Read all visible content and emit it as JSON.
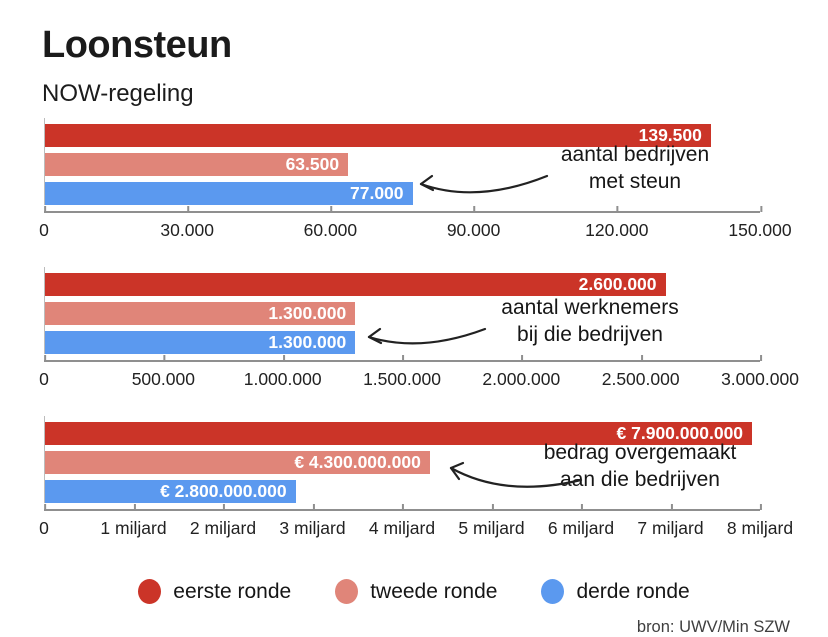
{
  "header": {
    "title": "Loonsteun",
    "subtitle": "NOW-regeling"
  },
  "colors": {
    "eerste_ronde": "#cb3428",
    "tweede_ronde": "#e08579",
    "derde_ronde": "#5b99ef",
    "text": "#1c1c1c",
    "axis": "#8f8f8f"
  },
  "chart_data": [
    {
      "type": "bar",
      "orientation": "horizontal",
      "annotation": [
        "aantal bedrijven",
        "met steun"
      ],
      "xlim": [
        0,
        150000
      ],
      "tick_labels": [
        "0",
        "30.000",
        "60.000",
        "90.000",
        "120.000",
        "150.000"
      ],
      "series": [
        {
          "name": "eerste ronde",
          "value": 139500,
          "label": "139.500",
          "color": "#cb3428"
        },
        {
          "name": "tweede ronde",
          "value": 63500,
          "label": "63.500",
          "color": "#e08579"
        },
        {
          "name": "derde ronde",
          "value": 77000,
          "label": "77.000",
          "color": "#5b99ef"
        }
      ]
    },
    {
      "type": "bar",
      "orientation": "horizontal",
      "annotation": [
        "aantal werknemers",
        "bij die bedrijven"
      ],
      "xlim": [
        0,
        3000000
      ],
      "tick_labels": [
        "0",
        "500.000",
        "1.000.000",
        "1.500.000",
        "2.000.000",
        "2.500.000",
        "3.000.000"
      ],
      "series": [
        {
          "name": "eerste ronde",
          "value": 2600000,
          "label": "2.600.000",
          "color": "#cb3428"
        },
        {
          "name": "tweede ronde",
          "value": 1300000,
          "label": "1.300.000",
          "color": "#e08579"
        },
        {
          "name": "derde ronde",
          "value": 1300000,
          "label": "1.300.000",
          "color": "#5b99ef"
        }
      ]
    },
    {
      "type": "bar",
      "orientation": "horizontal",
      "annotation": [
        "bedrag overgemaakt",
        "aan die bedrijven"
      ],
      "xlim": [
        0,
        8000000000
      ],
      "tick_labels": [
        "0",
        "1 miljard",
        "2 miljard",
        "3 miljard",
        "4 miljard",
        "5 miljard",
        "6 miljard",
        "7 miljard",
        "8 miljard"
      ],
      "series": [
        {
          "name": "eerste ronde",
          "value": 7900000000,
          "label": "€ 7.900.000.000",
          "color": "#cb3428"
        },
        {
          "name": "tweede ronde",
          "value": 4300000000,
          "label": "€ 4.300.000.000",
          "color": "#e08579"
        },
        {
          "name": "derde ronde",
          "value": 2800000000,
          "label": "€ 2.800.000.000",
          "color": "#5b99ef"
        }
      ]
    }
  ],
  "legend": [
    {
      "label": "eerste ronde",
      "color": "#cb3428"
    },
    {
      "label": "tweede ronde",
      "color": "#e08579"
    },
    {
      "label": "derde ronde",
      "color": "#5b99ef"
    }
  ],
  "source": "bron: UWV/Min SZW"
}
